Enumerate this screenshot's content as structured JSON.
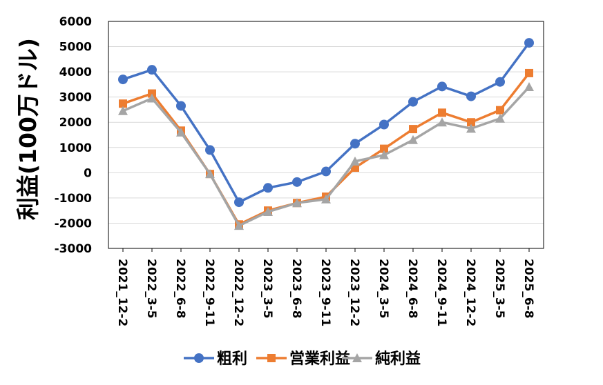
{
  "chart_data": {
    "type": "line",
    "title": "",
    "ylabel": "利益(100万ドル)",
    "xlabel": "",
    "ylim": [
      -3000,
      6000
    ],
    "yticks": [
      "6000",
      "5000",
      "4000",
      "3000",
      "2000",
      "1000",
      "0",
      "-1000",
      "-2000",
      "-3000"
    ],
    "yticks_values": [
      6000,
      5000,
      4000,
      3000,
      2000,
      1000,
      0,
      -1000,
      -2000,
      -3000
    ],
    "grid": true,
    "legend_position": "bottom",
    "categories": [
      "2021_12-2",
      "2022_3-5",
      "2022_6-8",
      "2022_9-11",
      "2022_12-2",
      "2023_3-5",
      "2023_6-8",
      "2023_9-11",
      "2023_12-2",
      "2024_3-5",
      "2024_6-8",
      "2024_9-11",
      "2024_12-2",
      "2025_3-5",
      "2025_6-8"
    ],
    "series": [
      {
        "name": "粗利",
        "color": "#4472C4",
        "marker": "circle",
        "values": [
          3700,
          4080,
          2650,
          900,
          -1170,
          -600,
          -370,
          50,
          1150,
          1910,
          2810,
          3420,
          3030,
          3600,
          5150
        ]
      },
      {
        "name": "営業利益",
        "color": "#ED7D31",
        "marker": "square",
        "values": [
          2740,
          3140,
          1670,
          -50,
          -2050,
          -1500,
          -1200,
          -950,
          200,
          950,
          1730,
          2380,
          2000,
          2480,
          3950
        ]
      },
      {
        "name": "純利益",
        "color": "#A5A5A5",
        "marker": "triangle",
        "values": [
          2450,
          2950,
          1600,
          -50,
          -2100,
          -1550,
          -1200,
          -1050,
          450,
          700,
          1300,
          2000,
          1750,
          2150,
          3400
        ]
      }
    ]
  }
}
